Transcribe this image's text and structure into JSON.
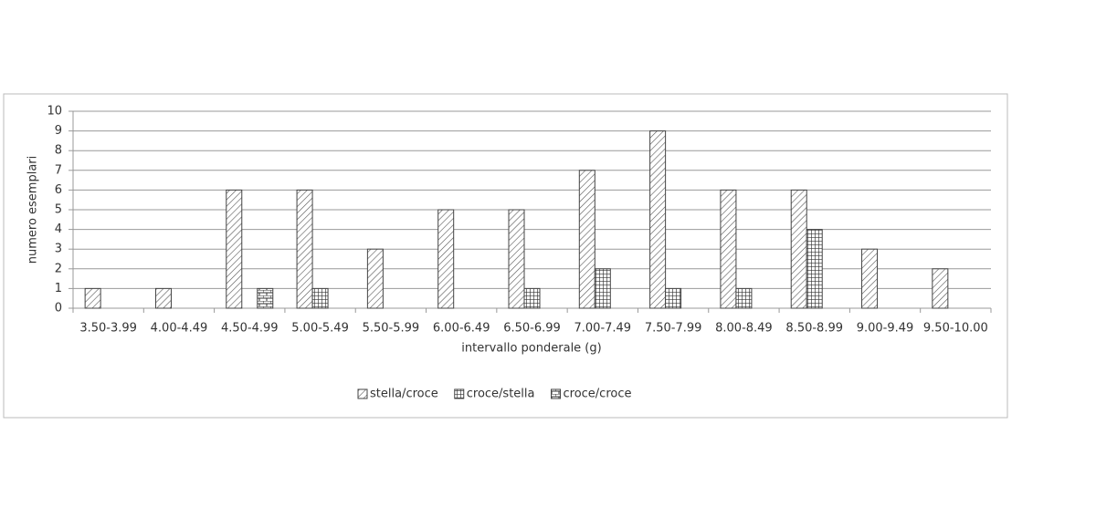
{
  "chart_data": {
    "type": "bar",
    "x_label": "intervallo ponderale (g)",
    "y_label": "numero esemplari",
    "categories": [
      "3.50-3.99",
      "4.00-4.49",
      "4.50-4.99",
      "5.00-5.49",
      "5.50-5.99",
      "6.00-6.49",
      "6.50-6.99",
      "7.00-7.49",
      "7.50-7.99",
      "8.00-8.49",
      "8.50-8.99",
      "9.00-9.49",
      "9.50-10.00"
    ],
    "series": [
      {
        "name": "stella/croce",
        "color": "#444444",
        "pattern": "diagonal",
        "values": [
          1,
          1,
          6,
          6,
          3,
          5,
          5,
          7,
          9,
          6,
          6,
          3,
          2
        ]
      },
      {
        "name": "croce/stella",
        "color": "#444444",
        "pattern": "grid",
        "values": [
          0,
          0,
          0,
          1,
          0,
          0,
          1,
          2,
          1,
          1,
          4,
          0,
          0
        ]
      },
      {
        "name": "croce/croce",
        "color": "#444444",
        "pattern": "brick",
        "values": [
          0,
          0,
          1,
          0,
          0,
          0,
          0,
          0,
          0,
          0,
          0,
          0,
          0
        ]
      }
    ],
    "ylim": [
      0,
      10
    ],
    "yticks": [
      0,
      1,
      2,
      3,
      4,
      5,
      6,
      7,
      8,
      9,
      10
    ],
    "grid": true,
    "legend": "bottom"
  }
}
